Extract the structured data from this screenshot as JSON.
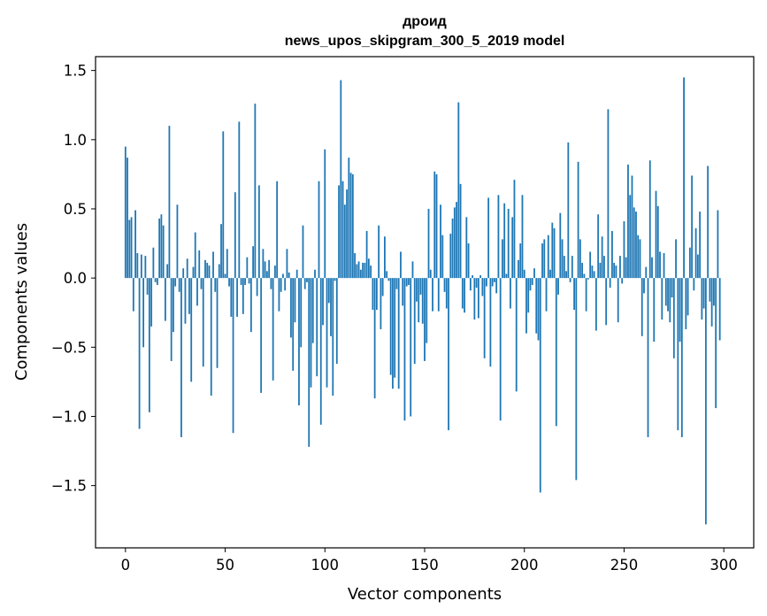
{
  "chart_data": {
    "type": "bar",
    "title": "дроид",
    "subtitle": "news_upos_skipgram_300_5_2019 model",
    "xlabel": "Vector components",
    "ylabel": "Components values",
    "xlim": [
      -15,
      315
    ],
    "ylim": [
      -1.95,
      1.6
    ],
    "xticks": [
      0,
      50,
      100,
      150,
      200,
      250,
      300
    ],
    "yticks": [
      -1.5,
      -1.0,
      -0.5,
      0.0,
      0.5,
      1.0,
      1.5
    ],
    "xtick_labels": [
      "0",
      "50",
      "100",
      "150",
      "200",
      "250",
      "300"
    ],
    "ytick_labels": [
      "−1.5",
      "−1.0",
      "−0.5",
      "0.0",
      "0.5",
      "1.0",
      "1.5"
    ],
    "grid": false,
    "bar_color": "#1f77b4",
    "values": [
      0.95,
      0.87,
      0.42,
      0.44,
      -0.24,
      0.49,
      0.18,
      -1.09,
      0.17,
      -0.5,
      0.16,
      -0.12,
      -0.97,
      -0.35,
      0.22,
      -0.03,
      -0.05,
      0.43,
      0.46,
      0.38,
      -0.31,
      0.1,
      1.1,
      -0.6,
      -0.39,
      -0.06,
      0.53,
      -0.1,
      -1.15,
      0.07,
      -0.33,
      0.14,
      -0.26,
      -0.75,
      0.08,
      0.33,
      -0.2,
      0.2,
      -0.08,
      -0.64,
      0.13,
      0.11,
      0.09,
      -0.85,
      0.19,
      -0.1,
      -0.65,
      0.1,
      0.39,
      1.06,
      0.03,
      0.21,
      -0.06,
      -0.28,
      -1.12,
      0.62,
      -0.28,
      1.13,
      -0.05,
      -0.26,
      -0.05,
      0.15,
      -0.04,
      -0.39,
      0.23,
      1.26,
      -0.13,
      0.67,
      -0.83,
      0.21,
      0.12,
      0.05,
      0.13,
      -0.08,
      -0.74,
      0.09,
      0.7,
      -0.24,
      -0.1,
      0.03,
      -0.09,
      0.21,
      0.04,
      -0.43,
      -0.67,
      -0.32,
      0.06,
      -0.92,
      -0.5,
      0.38,
      -0.08,
      -0.03,
      -1.22,
      -0.79,
      -0.47,
      0.06,
      -0.71,
      0.7,
      -1.06,
      -0.34,
      0.93,
      -0.79,
      -0.18,
      -0.42,
      -0.85,
      -0.02,
      -0.62,
      0.67,
      1.43,
      0.7,
      0.53,
      0.64,
      0.87,
      0.76,
      0.75,
      0.18,
      0.1,
      0.12,
      0.06,
      0.11,
      0.11,
      0.34,
      0.14,
      0.09,
      -0.23,
      -0.87,
      -0.23,
      0.38,
      -0.37,
      -0.13,
      0.3,
      0.05,
      -0.02,
      -0.7,
      -0.8,
      -0.72,
      -0.08,
      -0.8,
      0.19,
      -0.2,
      -1.03,
      -0.06,
      -0.05,
      -1.0,
      0.12,
      -0.62,
      -0.17,
      -0.32,
      -0.12,
      -0.33,
      -0.6,
      -0.47,
      0.5,
      0.06,
      -0.24,
      0.77,
      0.75,
      -0.24,
      0.53,
      0.31,
      -0.1,
      -0.22,
      -1.1,
      0.32,
      0.43,
      0.51,
      0.55,
      1.27,
      0.68,
      -0.22,
      -0.25,
      0.44,
      0.25,
      -0.09,
      0.02,
      -0.3,
      -0.07,
      -0.29,
      0.02,
      -0.13,
      -0.58,
      -0.06,
      0.58,
      -0.64,
      -0.06,
      -0.03,
      -0.11,
      0.6,
      -1.03,
      0.28,
      0.54,
      0.03,
      0.5,
      -0.22,
      0.44,
      0.71,
      -0.82,
      0.13,
      0.25,
      0.6,
      0.06,
      -0.4,
      -0.25,
      -0.09,
      -0.05,
      0.07,
      -0.4,
      -0.45,
      -1.55,
      0.25,
      0.28,
      -0.24,
      0.31,
      0.06,
      0.4,
      0.36,
      -1.07,
      -0.12,
      0.47,
      0.28,
      0.16,
      0.05,
      0.98,
      -0.03,
      0.16,
      -0.23,
      -1.46,
      0.84,
      0.28,
      0.11,
      0.03,
      -0.24,
      -0.01,
      0.19,
      0.09,
      0.05,
      -0.38,
      0.46,
      0.11,
      0.3,
      0.16,
      -0.34,
      1.22,
      -0.07,
      0.34,
      0.11,
      0.09,
      -0.32,
      0.16,
      -0.04,
      0.41,
      0.15,
      0.82,
      0.6,
      0.74,
      0.51,
      0.48,
      0.31,
      0.28,
      -0.42,
      -0.11,
      0.08,
      -1.15,
      0.85,
      0.15,
      -0.46,
      0.63,
      0.52,
      0.19,
      -0.3,
      0.18,
      -0.2,
      -0.24,
      -0.32,
      -0.14,
      -0.58,
      0.28,
      -1.1,
      -0.46,
      -1.15,
      1.45,
      -0.37,
      -0.27,
      0.22,
      0.74,
      -0.09,
      0.36,
      0.17,
      0.48,
      -0.3,
      -0.22,
      -1.78,
      0.81,
      -0.17,
      -0.35,
      -0.2,
      -0.94,
      0.49,
      -0.45
    ]
  }
}
